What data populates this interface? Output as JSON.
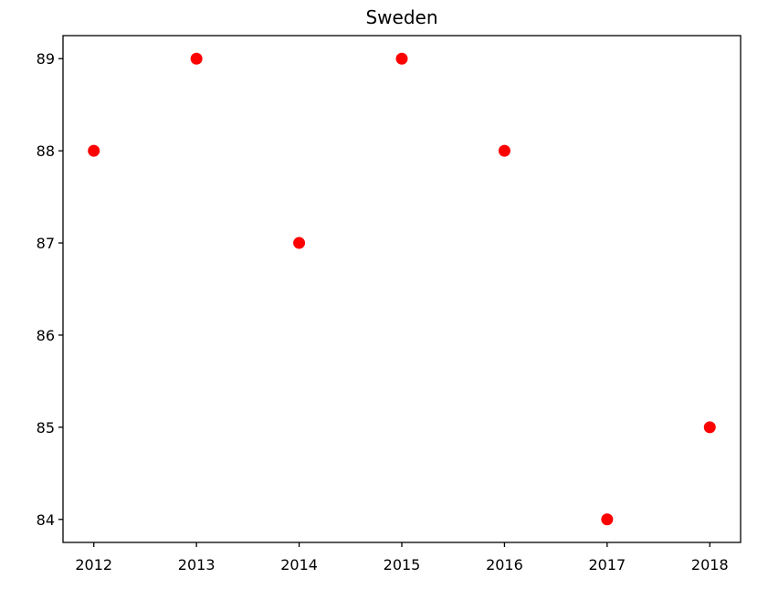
{
  "chart_data": {
    "type": "scatter",
    "title": "Sweden",
    "xlabel": "",
    "ylabel": "",
    "x": [
      2012,
      2013,
      2014,
      2015,
      2016,
      2017,
      2018
    ],
    "y": [
      88,
      89,
      87,
      89,
      88,
      84,
      85
    ],
    "xlim": [
      2011.7,
      2018.3
    ],
    "ylim": [
      83.75,
      89.25
    ],
    "xticks": [
      2012,
      2013,
      2014,
      2015,
      2016,
      2017,
      2018
    ],
    "yticks": [
      84,
      85,
      86,
      87,
      88,
      89
    ],
    "marker_color": "#ff0000",
    "grid": false,
    "legend": false
  }
}
